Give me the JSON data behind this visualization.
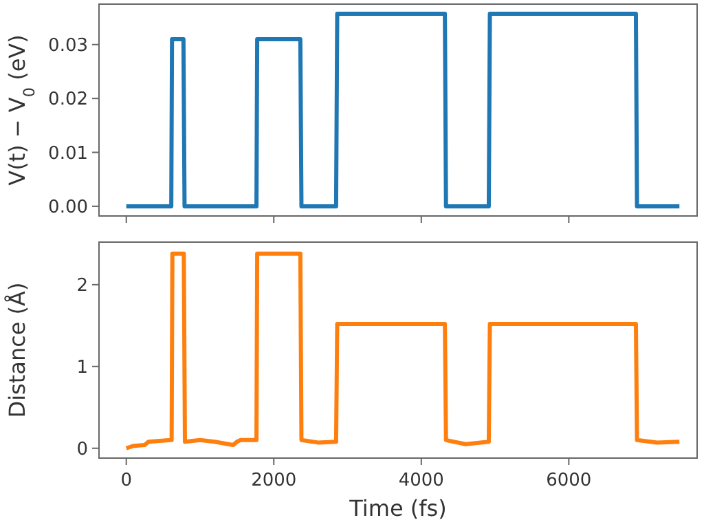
{
  "chart_data": [
    {
      "type": "line",
      "ylabel": "V(t) − V$_{0}$ (eV)",
      "xlim": [
        -370,
        7740
      ],
      "xticks": [
        0,
        2000,
        4000,
        6000
      ],
      "ylim": [
        -0.0018,
        0.0375
      ],
      "yticks": [
        {
          "value": 0,
          "label": "0.00"
        },
        {
          "value": 0.01,
          "label": "0.01"
        },
        {
          "value": 0.02,
          "label": "0.02"
        },
        {
          "value": 0.03,
          "label": "0.03"
        }
      ],
      "tick_labels": "y",
      "series": [
        {
          "color": "#1f77b4",
          "x": [
            0,
            610,
            620,
            775,
            790,
            1765,
            1775,
            2360,
            2375,
            2845,
            2860,
            4320,
            4335,
            4915,
            4930,
            6910,
            6925,
            7500
          ],
          "values": [
            0,
            0,
            0.031,
            0.031,
            0,
            0,
            0.031,
            0.031,
            0,
            0,
            0.0357,
            0.0357,
            0,
            0,
            0.0357,
            0.0357,
            0,
            0
          ]
        }
      ]
    },
    {
      "type": "line",
      "xlabel": "Time (fs)",
      "ylabel": "Distance (Å)",
      "xlim": [
        -370,
        7740
      ],
      "xticks": [
        0,
        2000,
        4000,
        6000
      ],
      "ylim": [
        -0.12,
        2.52
      ],
      "yticks": [
        0,
        1,
        2
      ],
      "series": [
        {
          "color": "#ff7f0e",
          "x": [
            0,
            100,
            250,
            300,
            600,
            615,
            625,
            780,
            795,
            1000,
            1200,
            1450,
            1500,
            1550,
            1765,
            1775,
            2360,
            2375,
            2600,
            2845,
            2860,
            4320,
            4335,
            4600,
            4915,
            4930,
            6910,
            6925,
            7200,
            7500
          ],
          "values": [
            0,
            0.03,
            0.04,
            0.08,
            0.1,
            0.1,
            2.38,
            2.38,
            0.08,
            0.1,
            0.08,
            0.04,
            0.08,
            0.1,
            0.1,
            2.38,
            2.38,
            0.1,
            0.07,
            0.08,
            1.52,
            1.52,
            0.1,
            0.05,
            0.08,
            1.52,
            1.52,
            0.1,
            0.07,
            0.08
          ]
        }
      ]
    }
  ]
}
